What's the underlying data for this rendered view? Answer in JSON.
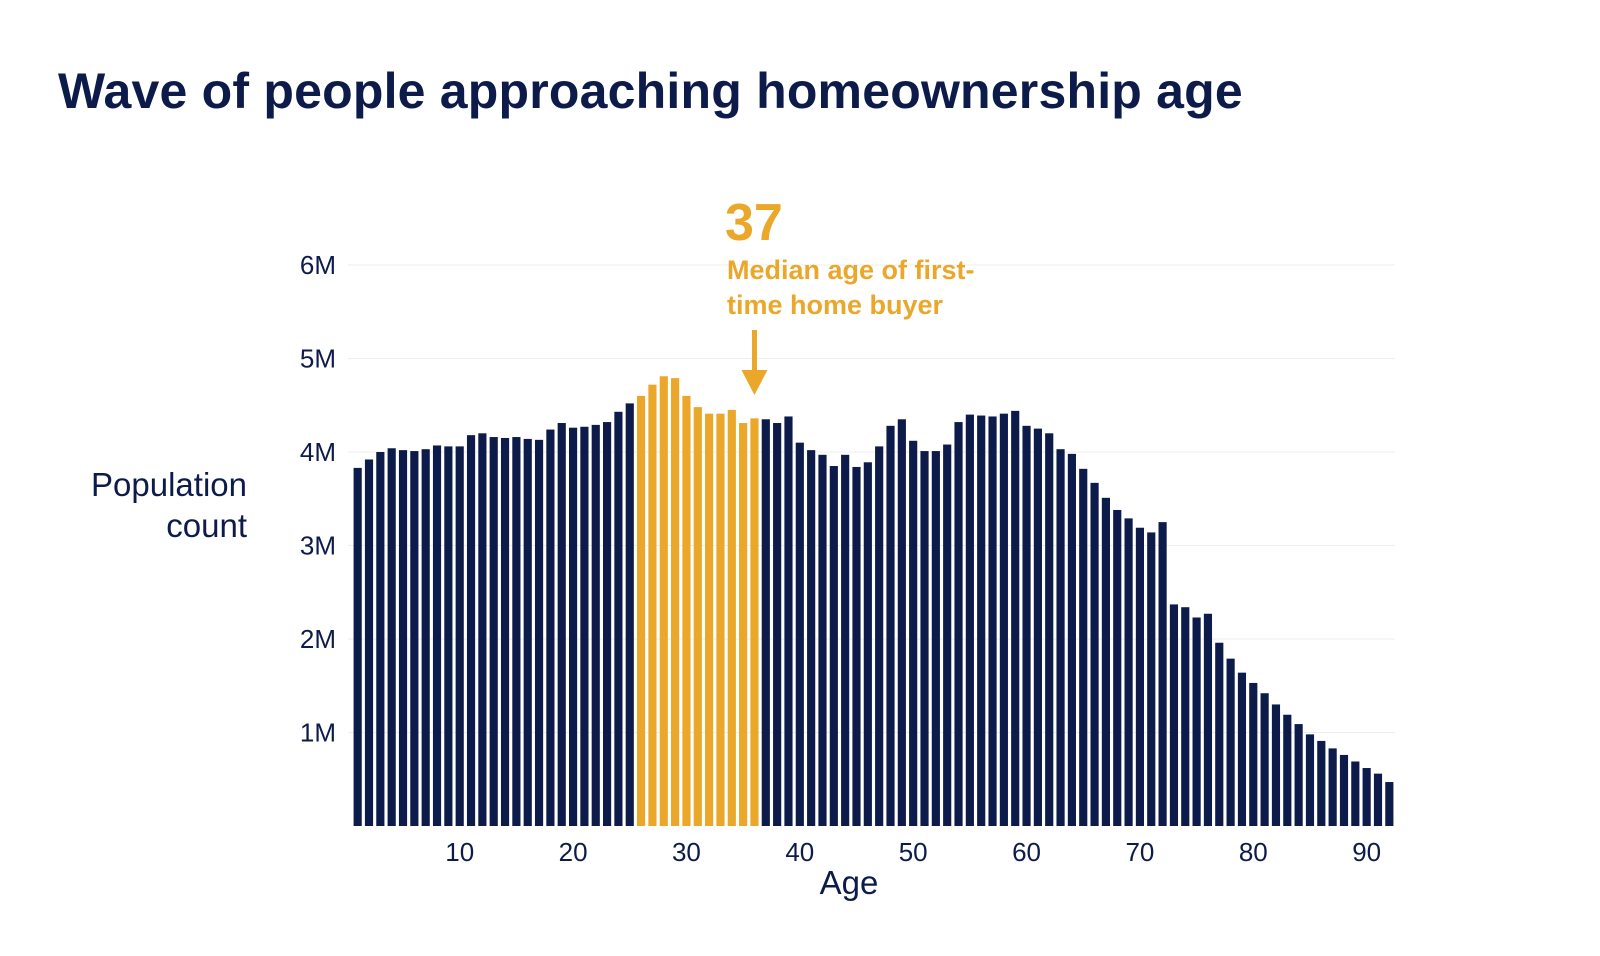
{
  "page": {
    "title": "Wave of people approaching homeownership age"
  },
  "chart_data": {
    "type": "bar",
    "title": "Wave of people approaching homeownership age",
    "xlabel": "Age",
    "ylabel": [
      "Population",
      "count"
    ],
    "x_start": 1,
    "x": [
      1,
      2,
      3,
      4,
      5,
      6,
      7,
      8,
      9,
      10,
      11,
      12,
      13,
      14,
      15,
      16,
      17,
      18,
      19,
      20,
      21,
      22,
      23,
      24,
      25,
      26,
      27,
      28,
      29,
      30,
      31,
      32,
      33,
      34,
      35,
      36,
      37,
      38,
      39,
      40,
      41,
      42,
      43,
      44,
      45,
      46,
      47,
      48,
      49,
      50,
      51,
      52,
      53,
      54,
      55,
      56,
      57,
      58,
      59,
      60,
      61,
      62,
      63,
      64,
      65,
      66,
      67,
      68,
      69,
      70,
      71,
      72,
      73,
      74,
      75,
      76,
      77,
      78,
      79,
      80,
      81,
      82,
      83,
      84,
      85,
      86,
      87,
      88,
      89,
      90,
      91,
      92
    ],
    "values": [
      3.83,
      3.92,
      4.0,
      4.04,
      4.02,
      4.01,
      4.03,
      4.07,
      4.06,
      4.06,
      4.18,
      4.2,
      4.16,
      4.15,
      4.16,
      4.14,
      4.13,
      4.24,
      4.31,
      4.26,
      4.27,
      4.29,
      4.32,
      4.43,
      4.52,
      4.6,
      4.72,
      4.81,
      4.79,
      4.6,
      4.48,
      4.41,
      4.41,
      4.45,
      4.31,
      4.36,
      4.35,
      4.31,
      4.38,
      4.1,
      4.02,
      3.97,
      3.85,
      3.97,
      3.84,
      3.89,
      4.06,
      4.28,
      4.35,
      4.12,
      4.01,
      4.01,
      4.08,
      4.32,
      4.4,
      4.39,
      4.38,
      4.41,
      4.44,
      4.28,
      4.25,
      4.2,
      4.03,
      3.98,
      3.82,
      3.67,
      3.51,
      3.38,
      3.29,
      3.19,
      3.14,
      3.25,
      2.37,
      2.34,
      2.23,
      2.27,
      1.96,
      1.79,
      1.64,
      1.53,
      1.42,
      1.3,
      1.19,
      1.09,
      0.98,
      0.91,
      0.83,
      0.76,
      0.69,
      0.62,
      0.56,
      0.47
    ],
    "highlight_range": [
      26,
      36
    ],
    "colors": {
      "default": "#0d1b4a",
      "highlight": "#eaa72a",
      "grid": "#eeeeee"
    },
    "x_ticks": [
      10,
      20,
      30,
      40,
      50,
      60,
      70,
      80,
      90
    ],
    "y_ticks": [
      {
        "value": 1,
        "label": "1M"
      },
      {
        "value": 2,
        "label": "2M"
      },
      {
        "value": 3,
        "label": "3M"
      },
      {
        "value": 4,
        "label": "4M"
      },
      {
        "value": 5,
        "label": "5M"
      },
      {
        "value": 6,
        "label": "6M"
      }
    ],
    "ylim": [
      0,
      6
    ],
    "grid": true,
    "annotation": {
      "value": "37",
      "lines": [
        "Median age of first-",
        "time home buyer"
      ],
      "at_x": 36
    }
  }
}
